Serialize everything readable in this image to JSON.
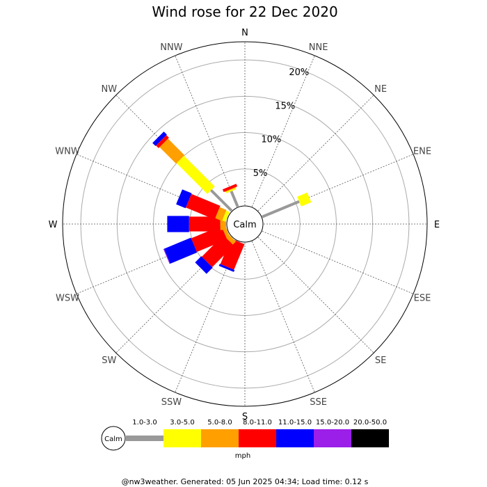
{
  "chart_data": {
    "type": "wind-rose",
    "title": "Wind rose for 22 Dec 2020",
    "directions": [
      "N",
      "NNE",
      "NE",
      "ENE",
      "E",
      "ESE",
      "SE",
      "SSE",
      "S",
      "SSW",
      "SW",
      "WSW",
      "W",
      "WNW",
      "NW",
      "NNW"
    ],
    "rings_percent": [
      5,
      10,
      15,
      20
    ],
    "ring_labels": [
      "5%",
      "10%",
      "15%",
      "20%"
    ],
    "rmax_percent": 22.5,
    "calm_label": "Calm",
    "speed_bins": [
      {
        "label": "1.0-3.0",
        "color": "#999999"
      },
      {
        "label": "3.0-5.0",
        "color": "#ffff00"
      },
      {
        "label": "5.0-8.0",
        "color": "#ff9f00"
      },
      {
        "label": "8.0-11.0",
        "color": "#ff0000"
      },
      {
        "label": "11.0-15.0",
        "color": "#0000ff"
      },
      {
        "label": "15.0-20.0",
        "color": "#9b1fe8"
      },
      {
        "label": "20.0-50.0",
        "color": "#000000"
      }
    ],
    "units": "mph",
    "series": [
      {
        "direction": "N",
        "cumulative": [
          0,
          0,
          0,
          0,
          0,
          0,
          0
        ]
      },
      {
        "direction": "NNE",
        "cumulative": [
          0,
          0,
          0,
          0,
          0,
          0,
          0
        ]
      },
      {
        "direction": "NE",
        "cumulative": [
          0,
          0,
          0,
          0,
          0,
          0,
          0
        ]
      },
      {
        "direction": "ENE",
        "cumulative": [
          5.5,
          7.0,
          7.0,
          7.0,
          7.0,
          7.0,
          7.0
        ]
      },
      {
        "direction": "E",
        "cumulative": [
          0,
          0,
          0,
          0,
          0,
          0,
          0
        ]
      },
      {
        "direction": "ESE",
        "cumulative": [
          0,
          0,
          0,
          0,
          0,
          0,
          0
        ]
      },
      {
        "direction": "SE",
        "cumulative": [
          0,
          0,
          0,
          0,
          0,
          0,
          0
        ]
      },
      {
        "direction": "SSE",
        "cumulative": [
          0,
          0,
          0,
          0,
          0,
          0,
          0
        ]
      },
      {
        "direction": "S",
        "cumulative": [
          0,
          0,
          0,
          0,
          0,
          0,
          0
        ]
      },
      {
        "direction": "SSW",
        "cumulative": [
          0,
          0,
          0,
          3.8,
          4.1,
          4.1,
          4.1
        ]
      },
      {
        "direction": "SW",
        "cumulative": [
          0,
          0,
          0.6,
          4.8,
          6.0,
          6.0,
          6.0
        ]
      },
      {
        "direction": "WSW",
        "cumulative": [
          0,
          0,
          0.5,
          5.0,
          9.0,
          9.1,
          9.1
        ]
      },
      {
        "direction": "W",
        "cumulative": [
          0,
          0,
          0.8,
          5.1,
          8.1,
          8.1,
          8.1
        ]
      },
      {
        "direction": "WNW",
        "cumulative": [
          0,
          0.5,
          1.5,
          5.8,
          7.2,
          7.2,
          7.2
        ]
      },
      {
        "direction": "NW",
        "cumulative": [
          4.0,
          10.0,
          13.2,
          13.7,
          14.3,
          14.3,
          14.3
        ]
      },
      {
        "direction": "NNW",
        "cumulative": [
          2.3,
          2.5,
          2.6,
          3.0,
          3.0,
          3.0,
          3.0
        ]
      }
    ]
  },
  "footer": "@nw3weather. Generated: 05 Jun 2025 04:34; Load time: 0.12 s"
}
